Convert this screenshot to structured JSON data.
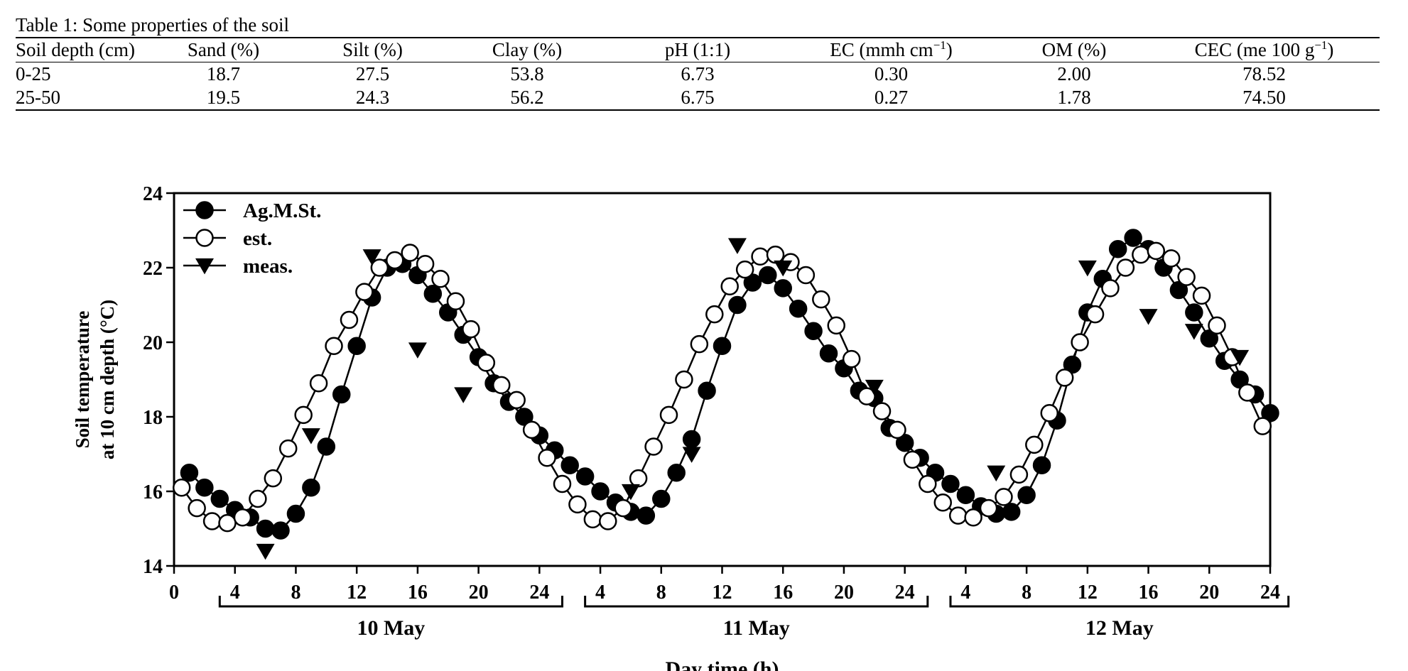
{
  "table": {
    "caption": "Table 1: Some properties of the soil",
    "columns": [
      {
        "label": "Soil depth (cm)"
      },
      {
        "label": "Sand (%)"
      },
      {
        "label": "Silt (%)"
      },
      {
        "label": "Clay (%)"
      },
      {
        "label": "pH (1:1)"
      },
      {
        "label": "EC (mmh cm",
        "sup": "−1",
        "tail": ")"
      },
      {
        "label": "OM (%)"
      },
      {
        "label": "CEC (me 100 g",
        "sup": "−1",
        "tail": ")"
      }
    ],
    "rows": [
      [
        "0-25",
        "18.7",
        "27.5",
        "53.8",
        "6.73",
        "0.30",
        "2.00",
        "78.52"
      ],
      [
        "25-50",
        "19.5",
        "24.3",
        "56.2",
        "6.75",
        "0.27",
        "1.78",
        "74.50"
      ]
    ]
  },
  "chart_data": {
    "type": "line",
    "title": "",
    "xlabel": "Day time (h)",
    "ylabel_lines": [
      "Soil temperature",
      "at 10 cm depth (°C)"
    ],
    "ylim": [
      14,
      24
    ],
    "yticks": [
      14,
      16,
      18,
      20,
      22,
      24
    ],
    "xlim": [
      0,
      72
    ],
    "xticks": [
      0,
      4,
      8,
      12,
      16,
      20,
      24,
      28,
      32,
      36,
      40,
      44,
      48,
      52,
      56,
      60,
      64,
      68,
      72
    ],
    "xtick_labels": [
      "0",
      "4",
      "8",
      "12",
      "16",
      "20",
      "24",
      "4",
      "8",
      "12",
      "16",
      "20",
      "24",
      "4",
      "8",
      "12",
      "16",
      "20",
      "24"
    ],
    "days": [
      {
        "label": "10 May",
        "start": 3,
        "end": 25.5
      },
      {
        "label": "11 May",
        "start": 27,
        "end": 49.5
      },
      {
        "label": "12 May",
        "start": 51,
        "end": 73.2
      }
    ],
    "legend_position": "top-left",
    "series": [
      {
        "name": "Ag.M.St.",
        "marker": "filled-circle",
        "connected": true,
        "x": [
          1,
          2,
          3,
          4,
          5,
          6,
          7,
          8,
          9,
          10,
          11,
          12,
          13,
          14,
          15,
          16,
          17,
          18,
          19,
          20,
          21,
          22,
          23,
          24,
          25,
          26,
          27,
          28,
          29,
          30,
          31,
          32,
          33,
          34,
          35,
          36,
          37,
          38,
          39,
          40,
          41,
          42,
          43,
          44,
          45,
          46,
          47,
          48,
          49,
          50,
          51,
          52,
          53,
          54,
          55,
          56,
          57,
          58,
          59,
          60,
          61,
          62,
          63,
          64,
          65,
          66,
          67,
          68,
          69,
          70,
          71,
          72
        ],
        "y": [
          16.5,
          16.1,
          15.8,
          15.5,
          15.3,
          15.0,
          14.95,
          15.4,
          16.1,
          17.2,
          18.6,
          19.9,
          21.2,
          22.0,
          22.1,
          21.8,
          21.3,
          20.8,
          20.2,
          19.6,
          18.9,
          18.4,
          18.0,
          17.5,
          17.1,
          16.7,
          16.4,
          16.0,
          15.7,
          15.45,
          15.35,
          15.8,
          16.5,
          17.4,
          18.7,
          19.9,
          21.0,
          21.6,
          21.8,
          21.45,
          20.9,
          20.3,
          19.7,
          19.3,
          18.7,
          18.5,
          17.7,
          17.3,
          16.9,
          16.5,
          16.2,
          15.9,
          15.6,
          15.4,
          15.45,
          15.9,
          16.7,
          17.9,
          19.4,
          20.8,
          21.7,
          22.5,
          22.8,
          22.5,
          22.0,
          21.4,
          20.8,
          20.1,
          19.5,
          19.0,
          18.6,
          18.1
        ]
      },
      {
        "name": "est.",
        "marker": "open-circle",
        "connected": true,
        "x": [
          0.5,
          1.5,
          2.5,
          3.5,
          4.5,
          5.5,
          6.5,
          7.5,
          8.5,
          9.5,
          10.5,
          11.5,
          12.5,
          13.5,
          14.5,
          15.5,
          16.5,
          17.5,
          18.5,
          19.5,
          20.5,
          21.5,
          22.5,
          23.5,
          24.5,
          25.5,
          26.5,
          27.5,
          28.5,
          29.5,
          30.5,
          31.5,
          32.5,
          33.5,
          34.5,
          35.5,
          36.5,
          37.5,
          38.5,
          39.5,
          40.5,
          41.5,
          42.5,
          43.5,
          44.5,
          45.5,
          46.5,
          47.5,
          48.5,
          49.5,
          50.5,
          51.5,
          52.5,
          53.5,
          54.5,
          55.5,
          56.5,
          57.5,
          58.5,
          59.5,
          60.5,
          61.5,
          62.5,
          63.5,
          64.5,
          65.5,
          66.5,
          67.5,
          68.5,
          69.5,
          70.5,
          71.5
        ],
        "y": [
          16.1,
          15.55,
          15.2,
          15.15,
          15.3,
          15.8,
          16.35,
          17.15,
          18.05,
          18.9,
          19.9,
          20.6,
          21.35,
          22.0,
          22.2,
          22.4,
          22.1,
          21.7,
          21.1,
          20.35,
          19.45,
          18.85,
          18.45,
          17.65,
          16.9,
          16.2,
          15.65,
          15.25,
          15.2,
          15.55,
          16.35,
          17.2,
          18.05,
          19.0,
          19.95,
          20.75,
          21.5,
          21.95,
          22.3,
          22.35,
          22.15,
          21.8,
          21.15,
          20.45,
          19.55,
          18.55,
          18.15,
          17.65,
          16.85,
          16.2,
          15.7,
          15.35,
          15.3,
          15.55,
          15.85,
          16.45,
          17.25,
          18.1,
          19.05,
          20.0,
          20.75,
          21.45,
          22.0,
          22.35,
          22.45,
          22.25,
          21.75,
          21.25,
          20.45,
          19.6,
          18.65,
          17.75
        ]
      },
      {
        "name": "meas.",
        "marker": "filled-triangle-down",
        "connected": false,
        "x": [
          6,
          9,
          13,
          16,
          19,
          30,
          34,
          37,
          40,
          46,
          54,
          60,
          64,
          67,
          70
        ],
        "y": [
          14.4,
          17.5,
          22.3,
          19.8,
          18.6,
          16.0,
          17.0,
          22.6,
          22.0,
          18.8,
          16.5,
          22.0,
          20.7,
          20.3,
          19.6
        ]
      }
    ]
  }
}
